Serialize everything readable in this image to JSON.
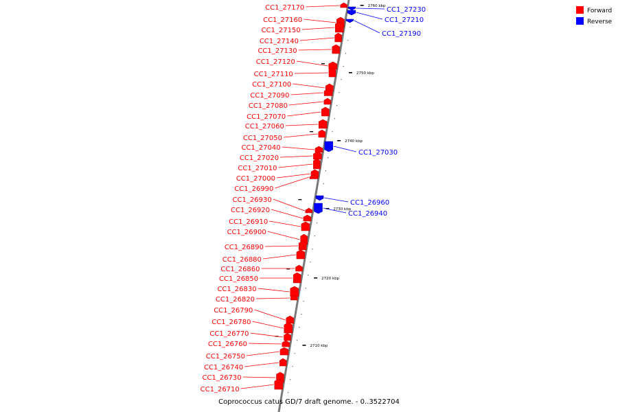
{
  "caption": "Coprococcus catus GD/7 draft genome. - 0..3522704",
  "legend": [
    {
      "label": "Forward",
      "color": "#ff0000"
    },
    {
      "label": "Reverse",
      "color": "#0000ff"
    }
  ],
  "axis_ticks": [
    "2760 kbp",
    "2750 kbp",
    "2740 kbp",
    "2730 kbp",
    "2720 kbp",
    "2710 kbp"
  ],
  "forward_labels": [
    "CC1_27170",
    "CC1_27160",
    "CC1_27150",
    "CC1_27140",
    "CC1_27130",
    "CC1_27120",
    "CC1_27110",
    "CC1_27100",
    "CC1_27090",
    "CC1_27080",
    "CC1_27070",
    "CC1_27060",
    "CC1_27050",
    "CC1_27040",
    "CC1_27020",
    "CC1_27010",
    "CC1_27000",
    "CC1_26990",
    "CC1_26930",
    "CC1_26920",
    "CC1_26910",
    "CC1_26900",
    "CC1_26890",
    "CC1_26880",
    "CC1_26860",
    "CC1_26850",
    "CC1_26830",
    "CC1_26820",
    "CC1_26790",
    "CC1_26780",
    "CC1_26770",
    "CC1_26760",
    "CC1_26750",
    "CC1_26740",
    "CC1_26730",
    "CC1_26710"
  ],
  "reverse_labels": [
    "CC1_27230",
    "CC1_27210",
    "CC1_27190",
    "CC1_27030",
    "CC1_26960",
    "CC1_26940"
  ]
}
